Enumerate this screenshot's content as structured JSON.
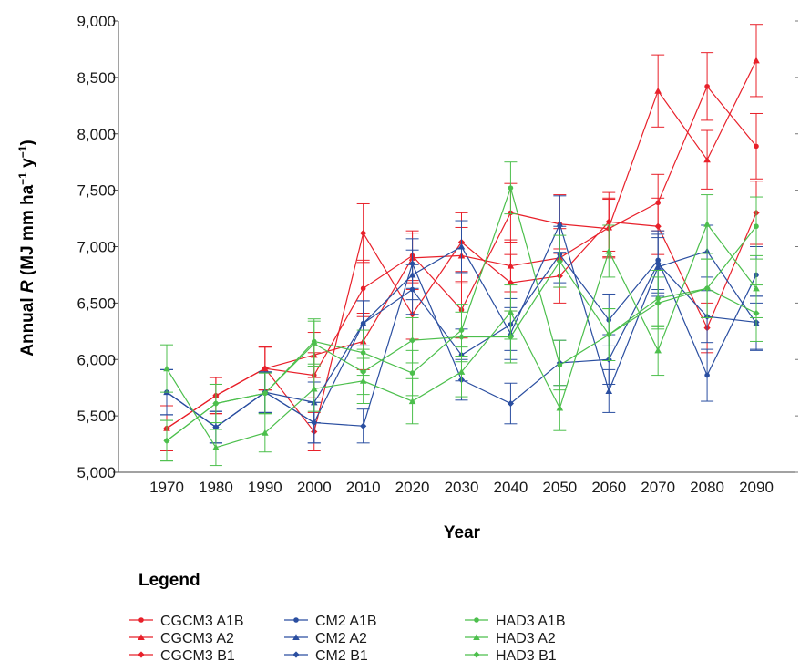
{
  "chart_data": {
    "type": "line",
    "xlabel": "Year",
    "ylabel_prefix": "Annual ",
    "ylabel_var": "R",
    "ylabel_units": " (MJ mm ha",
    "ylabel_sup1": "−1",
    "ylabel_mid": " y",
    "ylabel_sup2": "−1",
    "ylabel_close": ")",
    "ylim": [
      5000,
      9000
    ],
    "yticks": [
      5000,
      5500,
      6000,
      6500,
      7000,
      7500,
      8000,
      8500,
      9000
    ],
    "ytick_labels": [
      "5,000",
      "5,500",
      "6,000",
      "6,500",
      "7,000",
      "7,500",
      "8,000",
      "8,500",
      "9,000"
    ],
    "x": [
      1970,
      1980,
      1990,
      2000,
      2010,
      2020,
      2030,
      2040,
      2050,
      2060,
      2070,
      2080,
      2090
    ],
    "xtick_labels": [
      "1970",
      "1980",
      "1990",
      "2000",
      "2010",
      "2020",
      "2030",
      "2040",
      "2050",
      "2060",
      "2070",
      "2080",
      "2090"
    ],
    "grid": false,
    "legend_title": "Legend",
    "legend_position": "bottom",
    "series": [
      {
        "name": "CGCM3 A1B",
        "color": "#e8202a",
        "marker": "circle",
        "values": [
          5390,
          5680,
          5920,
          5860,
          6630,
          6920,
          6440,
          7300,
          7200,
          7160,
          7390,
          8420,
          7890
        ],
        "errors": [
          200,
          160,
          190,
          200,
          250,
          220,
          250,
          260,
          260,
          260,
          250,
          300,
          290
        ]
      },
      {
        "name": "CGCM3 A2",
        "color": "#e8202a",
        "marker": "triangle",
        "values": [
          5390,
          5680,
          5920,
          6040,
          6160,
          6900,
          6920,
          6830,
          6900,
          7170,
          8380,
          7770,
          8650
        ],
        "errors": [
          200,
          160,
          190,
          200,
          250,
          220,
          250,
          230,
          260,
          260,
          320,
          260,
          320
        ]
      },
      {
        "name": "CGCM3 B1",
        "color": "#e8202a",
        "marker": "diamond",
        "values": [
          5390,
          5680,
          5920,
          5360,
          7120,
          6400,
          7040,
          6680,
          6740,
          7220,
          7180,
          6280,
          7300
        ],
        "errors": [
          200,
          160,
          190,
          170,
          260,
          220,
          260,
          250,
          240,
          260,
          250,
          220,
          280
        ]
      },
      {
        "name": "CM2 A1B",
        "color": "#2a4ea0",
        "marker": "circle",
        "values": [
          5710,
          5400,
          5710,
          5440,
          6320,
          6620,
          6040,
          6310,
          6930,
          6350,
          6880,
          5860,
          6750
        ],
        "errors": [
          200,
          140,
          180,
          180,
          200,
          220,
          230,
          230,
          250,
          230,
          260,
          230,
          250
        ]
      },
      {
        "name": "CM2 A2",
        "color": "#2a4ea0",
        "marker": "triangle",
        "values": [
          5710,
          5400,
          5710,
          5620,
          6320,
          6750,
          7000,
          6230,
          7200,
          5720,
          6820,
          6960,
          6320
        ],
        "errors": [
          200,
          140,
          180,
          180,
          200,
          220,
          230,
          230,
          250,
          190,
          260,
          230,
          240
        ]
      },
      {
        "name": "CM2 B1",
        "color": "#2a4ea0",
        "marker": "diamond",
        "values": [
          5710,
          5400,
          5710,
          5440,
          5410,
          6850,
          5820,
          5610,
          5970,
          6000,
          6850,
          6380,
          6330
        ],
        "errors": [
          200,
          140,
          180,
          180,
          150,
          220,
          180,
          180,
          200,
          220,
          260,
          230,
          240
        ]
      },
      {
        "name": "HAD3 A1B",
        "color": "#4cbf4c",
        "marker": "circle",
        "values": [
          5280,
          5610,
          5700,
          6160,
          6060,
          5880,
          6260,
          7520,
          5950,
          6220,
          6540,
          6630,
          7180
        ],
        "errors": [
          180,
          170,
          180,
          200,
          200,
          200,
          230,
          230,
          220,
          230,
          250,
          260,
          260
        ]
      },
      {
        "name": "HAD3 A2",
        "color": "#4cbf4c",
        "marker": "triangle",
        "values": [
          5920,
          5220,
          5350,
          5740,
          5810,
          5630,
          5890,
          6420,
          5570,
          6960,
          6080,
          7200,
          6630
        ],
        "errors": [
          210,
          160,
          170,
          200,
          200,
          200,
          220,
          240,
          200,
          230,
          220,
          260,
          260
        ]
      },
      {
        "name": "HAD3 B1",
        "color": "#4cbf4c",
        "marker": "diamond",
        "values": [
          5280,
          5610,
          5700,
          6140,
          5890,
          6170,
          6200,
          6200,
          6870,
          6220,
          6500,
          6630,
          6410
        ],
        "errors": [
          180,
          170,
          180,
          200,
          200,
          200,
          220,
          230,
          230,
          230,
          230,
          260,
          250
        ]
      }
    ]
  }
}
